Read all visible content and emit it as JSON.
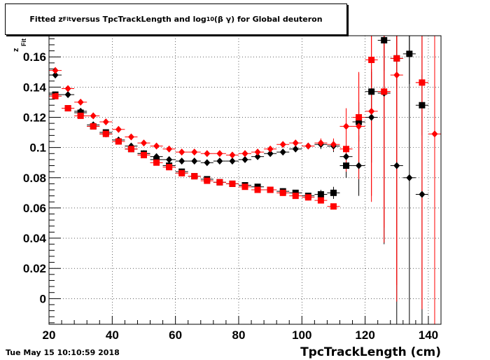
{
  "chart_data": {
    "type": "scatter",
    "title_parts": {
      "pre": "Fitted  z",
      "sub1": "Fit",
      "mid": "  versus TpcTrackLength and log",
      "sub2": "10",
      "post": " (β γ) for Global deuteron"
    },
    "xlabel": "TpcTrackLength (cm)",
    "ylabel": "z_Fit",
    "xlim": [
      20,
      144
    ],
    "ylim": [
      -0.017,
      0.174
    ],
    "grid": true,
    "x_ticks": [
      20,
      40,
      60,
      80,
      100,
      120,
      140
    ],
    "y_ticks": [
      0,
      0.02,
      0.04,
      0.06,
      0.08,
      0.1,
      0.12,
      0.14,
      0.16
    ],
    "y_tick_labels": [
      "0",
      "0.02",
      "0.04",
      "0.06",
      "0.08",
      "0.1",
      "0.12",
      "0.14",
      "0.16"
    ],
    "series": [
      {
        "marker": "square",
        "color": "#000000",
        "points": [
          [
            22,
            0.135,
            0.002
          ],
          [
            26,
            0.126,
            0.002
          ],
          [
            30,
            0.123,
            0.002
          ],
          [
            34,
            0.114,
            0.002
          ],
          [
            38,
            0.11,
            0.002
          ],
          [
            42,
            0.104,
            0.002
          ],
          [
            46,
            0.099,
            0.002
          ],
          [
            50,
            0.096,
            0.002
          ],
          [
            54,
            0.092,
            0.002
          ],
          [
            58,
            0.088,
            0.002
          ],
          [
            62,
            0.084,
            0.002
          ],
          [
            66,
            0.081,
            0.002
          ],
          [
            70,
            0.079,
            0.002
          ],
          [
            74,
            0.077,
            0.002
          ],
          [
            78,
            0.076,
            0.002
          ],
          [
            82,
            0.075,
            0.002
          ],
          [
            86,
            0.074,
            0.002
          ],
          [
            90,
            0.072,
            0.002
          ],
          [
            94,
            0.071,
            0.002
          ],
          [
            98,
            0.07,
            0.002
          ],
          [
            102,
            0.068,
            0.002
          ],
          [
            106,
            0.069,
            0.003
          ],
          [
            110,
            0.07,
            0.004
          ],
          [
            114,
            0.088,
            0.008
          ],
          [
            118,
            0.117,
            0.013
          ],
          [
            122,
            0.137,
            0.015
          ],
          [
            126,
            0.171,
            0.02
          ],
          [
            130,
            0.159,
            0.02
          ],
          [
            134,
            0.162,
            0.02
          ],
          [
            138,
            0.128,
            0.02
          ]
        ]
      },
      {
        "marker": "diamond",
        "color": "#000000",
        "points": [
          [
            22,
            0.148,
            0.002
          ],
          [
            26,
            0.135,
            0.002
          ],
          [
            30,
            0.124,
            0.002
          ],
          [
            34,
            0.115,
            0.002
          ],
          [
            38,
            0.109,
            0.002
          ],
          [
            42,
            0.105,
            0.002
          ],
          [
            46,
            0.101,
            0.002
          ],
          [
            50,
            0.096,
            0.002
          ],
          [
            54,
            0.094,
            0.002
          ],
          [
            58,
            0.092,
            0.002
          ],
          [
            62,
            0.091,
            0.002
          ],
          [
            66,
            0.091,
            0.002
          ],
          [
            70,
            0.09,
            0.002
          ],
          [
            74,
            0.091,
            0.002
          ],
          [
            78,
            0.091,
            0.002
          ],
          [
            82,
            0.092,
            0.002
          ],
          [
            86,
            0.094,
            0.002
          ],
          [
            90,
            0.096,
            0.002
          ],
          [
            94,
            0.097,
            0.002
          ],
          [
            98,
            0.099,
            0.002
          ],
          [
            102,
            0.101,
            0.002
          ],
          [
            106,
            0.102,
            0.003
          ],
          [
            110,
            0.101,
            0.004
          ],
          [
            114,
            0.094,
            0.007
          ],
          [
            118,
            0.088,
            0.02
          ],
          [
            122,
            0.12,
            0.03
          ],
          [
            126,
            0.136,
            0.1
          ],
          [
            130,
            0.088,
            0.12
          ],
          [
            134,
            0.08,
            0.15
          ],
          [
            138,
            0.069,
            0.14
          ]
        ]
      },
      {
        "marker": "square",
        "color": "#ff0000",
        "points": [
          [
            22,
            0.134,
            0.002
          ],
          [
            26,
            0.126,
            0.002
          ],
          [
            30,
            0.121,
            0.002
          ],
          [
            34,
            0.114,
            0.002
          ],
          [
            38,
            0.109,
            0.002
          ],
          [
            42,
            0.104,
            0.002
          ],
          [
            46,
            0.099,
            0.002
          ],
          [
            50,
            0.095,
            0.002
          ],
          [
            54,
            0.09,
            0.002
          ],
          [
            58,
            0.087,
            0.002
          ],
          [
            62,
            0.083,
            0.002
          ],
          [
            66,
            0.081,
            0.002
          ],
          [
            70,
            0.078,
            0.002
          ],
          [
            74,
            0.077,
            0.002
          ],
          [
            78,
            0.076,
            0.002
          ],
          [
            82,
            0.074,
            0.002
          ],
          [
            86,
            0.072,
            0.002
          ],
          [
            90,
            0.072,
            0.002
          ],
          [
            94,
            0.07,
            0.002
          ],
          [
            98,
            0.068,
            0.002
          ],
          [
            102,
            0.067,
            0.002
          ],
          [
            106,
            0.065,
            0.002
          ],
          [
            110,
            0.061,
            0.002
          ],
          [
            114,
            0.099,
            0.015
          ],
          [
            118,
            0.12,
            0.03
          ],
          [
            122,
            0.158,
            0.09
          ],
          [
            126,
            0.137,
            0.1
          ],
          [
            130,
            0.159,
            0.15
          ],
          [
            138,
            0.143,
            0.15
          ]
        ]
      },
      {
        "marker": "diamond",
        "color": "#ff0000",
        "points": [
          [
            22,
            0.151,
            0.002
          ],
          [
            26,
            0.139,
            0.002
          ],
          [
            30,
            0.13,
            0.002
          ],
          [
            34,
            0.121,
            0.002
          ],
          [
            38,
            0.117,
            0.002
          ],
          [
            42,
            0.112,
            0.002
          ],
          [
            46,
            0.107,
            0.002
          ],
          [
            50,
            0.103,
            0.002
          ],
          [
            54,
            0.101,
            0.002
          ],
          [
            58,
            0.099,
            0.002
          ],
          [
            62,
            0.097,
            0.002
          ],
          [
            66,
            0.097,
            0.002
          ],
          [
            70,
            0.096,
            0.002
          ],
          [
            74,
            0.096,
            0.002
          ],
          [
            78,
            0.095,
            0.002
          ],
          [
            82,
            0.096,
            0.002
          ],
          [
            86,
            0.097,
            0.002
          ],
          [
            90,
            0.099,
            0.002
          ],
          [
            94,
            0.102,
            0.002
          ],
          [
            98,
            0.103,
            0.002
          ],
          [
            102,
            0.101,
            0.002
          ],
          [
            106,
            0.103,
            0.003
          ],
          [
            110,
            0.102,
            0.004
          ],
          [
            114,
            0.114,
            0.012
          ],
          [
            118,
            0.114,
            0.035
          ],
          [
            122,
            0.124,
            0.06
          ],
          [
            126,
            0.137,
            0.09
          ],
          [
            130,
            0.148,
            0.15
          ],
          [
            138,
            0.143,
            0.15
          ],
          [
            142,
            0.109,
            0.15
          ]
        ]
      }
    ]
  },
  "timestamp": "Tue May 15 10:10:59 2018"
}
